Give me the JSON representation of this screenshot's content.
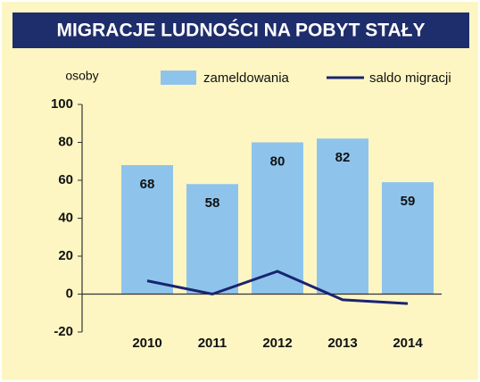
{
  "chart_data": {
    "type": "bar",
    "title": "MIGRACJE LUDNOŚCI NA POBYT STAŁY",
    "y_label": "osoby",
    "categories": [
      "2010",
      "2011",
      "2012",
      "2013",
      "2014"
    ],
    "series": [
      {
        "name": "zameldowania",
        "type": "bar",
        "color": "#8ec4ec",
        "values": [
          68,
          58,
          80,
          82,
          59
        ]
      },
      {
        "name": "saldo migracji",
        "type": "line",
        "color": "#1a2470",
        "values": [
          7,
          0,
          12,
          -3,
          -5
        ]
      }
    ],
    "ylim": [
      -20,
      100
    ],
    "yticks": [
      -20,
      0,
      20,
      40,
      60,
      80,
      100
    ],
    "grid": false,
    "legend": "top"
  }
}
